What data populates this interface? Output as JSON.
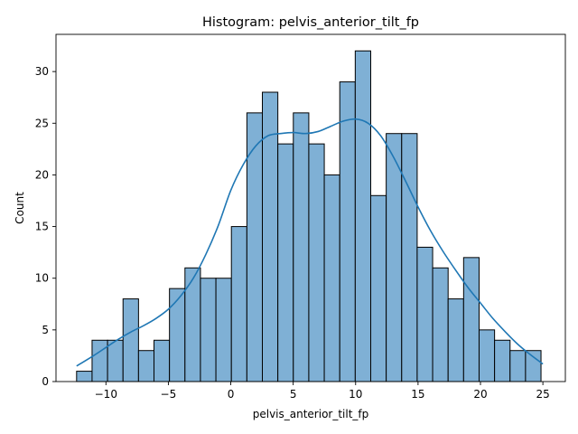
{
  "chart_data": {
    "type": "bar",
    "title": "Histogram: pelvis_anterior_tilt_fp",
    "xlabel": "pelvis_anterior_tilt_fp",
    "ylabel": "Count",
    "xlim": [
      -14.0,
      26.8
    ],
    "ylim": [
      0,
      33.6
    ],
    "xticks": [
      -10,
      -5,
      0,
      5,
      10,
      15,
      20,
      25
    ],
    "yticks": [
      0,
      5,
      10,
      15,
      20,
      25,
      30
    ],
    "xtick_labels": [
      "−10",
      "−5",
      "0",
      "5",
      "10",
      "15",
      "20",
      "25"
    ],
    "ytick_labels": [
      "0",
      "5",
      "10",
      "15",
      "20",
      "25",
      "30"
    ],
    "grid": false,
    "bar_color": "#7fb0d5",
    "bar_edge_color": "#000000",
    "kde_color": "#1f77b4",
    "bins": {
      "start": -12.35,
      "width": 1.24,
      "counts": [
        1,
        4,
        4,
        8,
        3,
        4,
        9,
        11,
        10,
        10,
        15,
        26,
        28,
        23,
        26,
        23,
        20,
        29,
        32,
        18,
        24,
        24,
        13,
        11,
        8,
        12,
        5,
        4,
        3,
        3
      ]
    },
    "kde": {
      "x": [
        -12.35,
        -11,
        -10,
        -9,
        -8,
        -7,
        -6,
        -5,
        -4,
        -3,
        -2,
        -1,
        0,
        1,
        2,
        3,
        4,
        5,
        6,
        7,
        8,
        9,
        10,
        11,
        12,
        13,
        14,
        15,
        16,
        17,
        18,
        19,
        20,
        21,
        22,
        23,
        24,
        25
      ],
      "y": [
        1.5,
        2.5,
        3.3,
        4.1,
        4.8,
        5.4,
        6.1,
        7.0,
        8.3,
        10.0,
        12.3,
        15.1,
        18.5,
        21.0,
        22.8,
        23.8,
        24.0,
        24.1,
        24.0,
        24.2,
        24.7,
        25.2,
        25.4,
        25.0,
        23.8,
        21.8,
        19.4,
        16.9,
        14.6,
        12.6,
        10.8,
        9.1,
        7.6,
        6.1,
        4.8,
        3.6,
        2.6,
        1.7
      ]
    }
  }
}
